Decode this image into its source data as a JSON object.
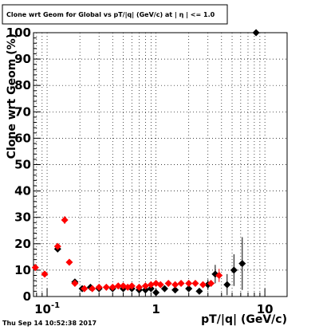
{
  "chart_data": {
    "type": "scatter",
    "title": "Clone wrt Geom for Global vs pT/|q| (GeV/c) at |  η | <= 1.0",
    "xlabel": "pT/|q| (GeV/c)",
    "ylabel": "Clone wrt Geom (%)",
    "xscale": "log",
    "xlim": [
      0.075,
      16
    ],
    "ylim": [
      0,
      100
    ],
    "grid": true,
    "x_tick_labels": [
      "10^-1",
      "1",
      "10"
    ],
    "y_tick_labels": [
      "0",
      "10",
      "20",
      "30",
      "40",
      "50",
      "60",
      "70",
      "80",
      "90",
      "100"
    ],
    "timestamp": "Thu Sep 14 10:52:38 2017",
    "series": [
      {
        "color": "#000000",
        "marker": "diamond",
        "points": [
          {
            "x": 0.125,
            "y": 18
          },
          {
            "x": 0.18,
            "y": 5.5
          },
          {
            "x": 0.21,
            "y": 3
          },
          {
            "x": 0.25,
            "y": 3.5
          },
          {
            "x": 0.3,
            "y": 3
          },
          {
            "x": 0.4,
            "y": 3
          },
          {
            "x": 0.5,
            "y": 3
          },
          {
            "x": 0.6,
            "y": 3
          },
          {
            "x": 0.7,
            "y": 2.5
          },
          {
            "x": 0.8,
            "y": 2.5
          },
          {
            "x": 0.9,
            "y": 3
          },
          {
            "x": 1.0,
            "y": 1.5
          },
          {
            "x": 1.2,
            "y": 3
          },
          {
            "x": 1.5,
            "y": 2.5
          },
          {
            "x": 2.0,
            "y": 3
          },
          {
            "x": 2.5,
            "y": 2
          },
          {
            "x": 3.0,
            "y": 4.5
          },
          {
            "x": 3.5,
            "y": 8.5
          },
          {
            "x": 4.5,
            "y": 4.5
          },
          {
            "x": 5.2,
            "y": 10
          },
          {
            "x": 6.2,
            "y": 12.5
          },
          {
            "x": 8.3,
            "y": 100
          }
        ],
        "errors": [
          0.5,
          1,
          0.5,
          0.5,
          0.5,
          0.4,
          0.4,
          0.4,
          0.4,
          0.4,
          0.5,
          0.5,
          0.6,
          0.6,
          0.8,
          1,
          2,
          3.5,
          4,
          6,
          10,
          0
        ]
      },
      {
        "color": "#ff0000",
        "marker": "diamond",
        "points": [
          {
            "x": 0.078,
            "y": 11
          },
          {
            "x": 0.095,
            "y": 8.5
          },
          {
            "x": 0.125,
            "y": 19
          },
          {
            "x": 0.145,
            "y": 29
          },
          {
            "x": 0.16,
            "y": 13
          },
          {
            "x": 0.18,
            "y": 5
          },
          {
            "x": 0.22,
            "y": 3
          },
          {
            "x": 0.26,
            "y": 3
          },
          {
            "x": 0.3,
            "y": 3.5
          },
          {
            "x": 0.35,
            "y": 3.5
          },
          {
            "x": 0.4,
            "y": 3.5
          },
          {
            "x": 0.45,
            "y": 4
          },
          {
            "x": 0.5,
            "y": 4
          },
          {
            "x": 0.55,
            "y": 3.5
          },
          {
            "x": 0.6,
            "y": 4
          },
          {
            "x": 0.7,
            "y": 3.5
          },
          {
            "x": 0.8,
            "y": 4
          },
          {
            "x": 0.9,
            "y": 4.5
          },
          {
            "x": 1.0,
            "y": 5
          },
          {
            "x": 1.1,
            "y": 4.5
          },
          {
            "x": 1.3,
            "y": 5
          },
          {
            "x": 1.5,
            "y": 4.5
          },
          {
            "x": 1.7,
            "y": 5
          },
          {
            "x": 2.0,
            "y": 5
          },
          {
            "x": 2.3,
            "y": 5
          },
          {
            "x": 2.7,
            "y": 4.5
          },
          {
            "x": 3.2,
            "y": 5
          },
          {
            "x": 3.8,
            "y": 8
          }
        ],
        "errors": [
          0.8,
          0.8,
          1,
          1.5,
          1,
          0.5,
          0.4,
          0.4,
          0.4,
          0.4,
          0.4,
          0.4,
          0.4,
          0.4,
          0.4,
          0.4,
          0.4,
          0.5,
          0.5,
          0.5,
          0.5,
          0.6,
          0.6,
          0.7,
          0.8,
          0.9,
          1.2,
          2.5
        ]
      }
    ]
  }
}
